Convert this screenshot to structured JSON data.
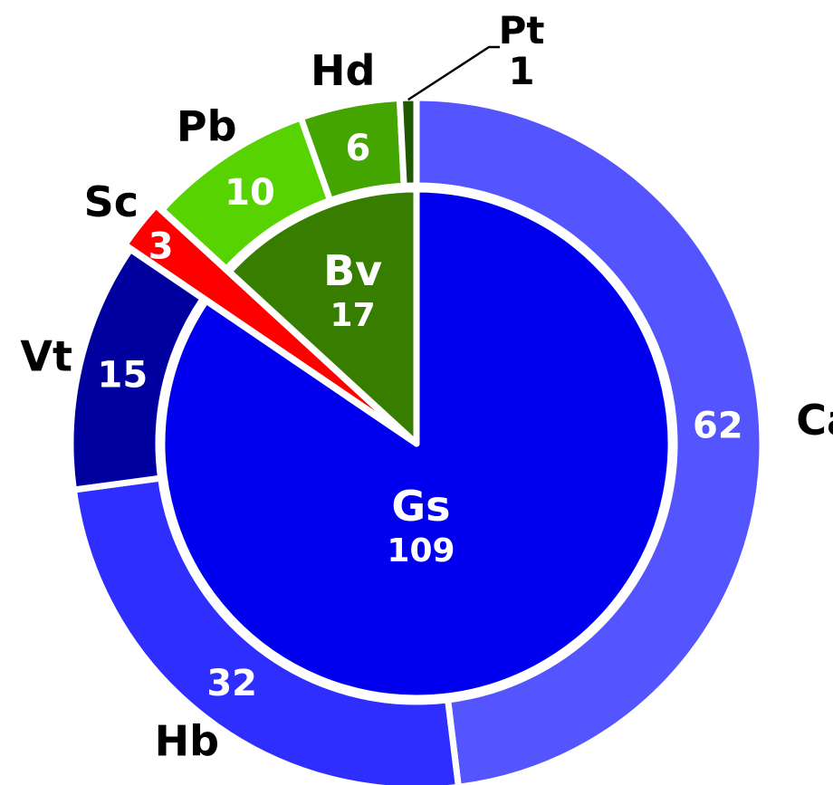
{
  "chart_data": {
    "type": "pie",
    "inner": [
      {
        "label": "Gs",
        "value": 109,
        "color": "#0000ee"
      },
      {
        "label": "Bv",
        "value": 17,
        "color": "#367d00"
      }
    ],
    "outer": [
      {
        "label": "Ca",
        "value": 62,
        "color": "#5555ff",
        "parent": "Gs"
      },
      {
        "label": "Hb",
        "value": 32,
        "color": "#2e2eff",
        "parent": "Gs"
      },
      {
        "label": "Vt",
        "value": 15,
        "color": "#00009e",
        "parent": "Gs"
      },
      {
        "label": "Sc",
        "value": 3,
        "color": "#ff0000"
      },
      {
        "label": "Pb",
        "value": 10,
        "color": "#56d300",
        "parent": "Bv"
      },
      {
        "label": "Hd",
        "value": 6,
        "color": "#44a400",
        "parent": "Bv"
      },
      {
        "label": "Pt",
        "value": 1,
        "color": "#1f5a00",
        "parent": "Bv"
      }
    ]
  }
}
